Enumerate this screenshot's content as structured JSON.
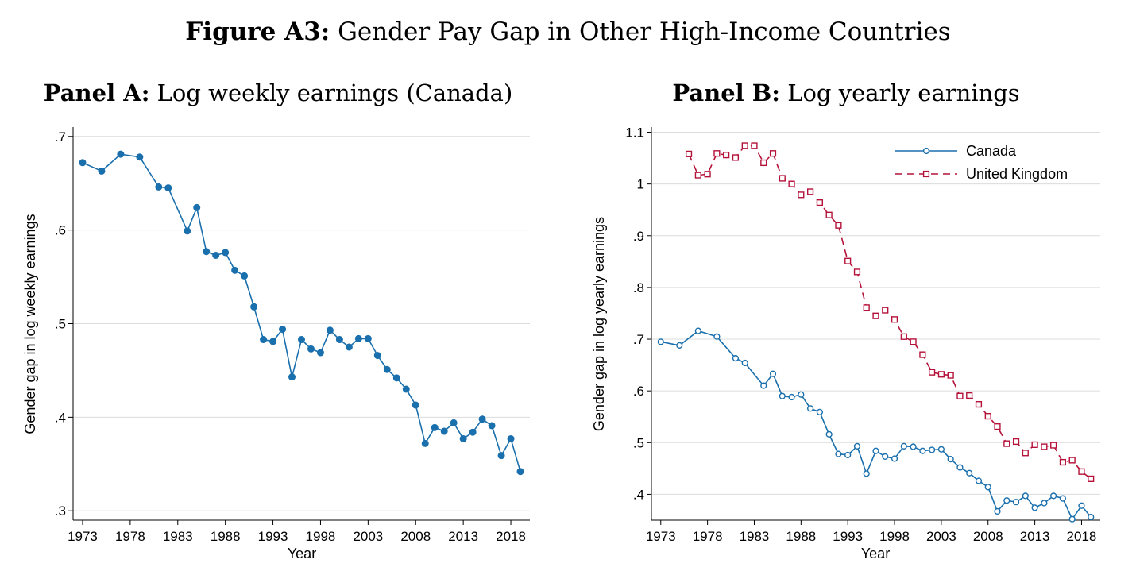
{
  "figure": {
    "label": "Figure A3:",
    "title": "Gender Pay Gap in Other High-Income Countries"
  },
  "panels": [
    {
      "label": "Panel A:",
      "title": "Log weekly earnings (Canada)"
    },
    {
      "label": "Panel B:",
      "title": "Log yearly earnings"
    }
  ],
  "colors": {
    "canada": "#1a6fad",
    "uk": "#b5123a",
    "grid": "#dcdcdc"
  },
  "chart_data": [
    {
      "type": "line",
      "title": "Panel A: Log weekly earnings (Canada)",
      "xlabel": "Year",
      "ylabel": "Gender gap in log weekly earnings",
      "xlim": [
        1972,
        2020
      ],
      "ylim": [
        0.29,
        0.71
      ],
      "xticks": [
        1973,
        1978,
        1983,
        1988,
        1993,
        1998,
        2003,
        2008,
        2013,
        2018
      ],
      "yticks": [
        0.3,
        0.4,
        0.5,
        0.6,
        0.7
      ],
      "ytick_labels": [
        ".3",
        ".4",
        ".5",
        ".6",
        ".7"
      ],
      "grid": true,
      "series": [
        {
          "marker": "filled-circle",
          "x": [
            1973,
            1975,
            1977,
            1979,
            1981,
            1982,
            1984,
            1985,
            1986,
            1987,
            1988,
            1989,
            1990,
            1991,
            1992,
            1993,
            1994,
            1995,
            1996,
            1997,
            1998,
            1999,
            2000,
            2001,
            2002,
            2003,
            2004,
            2005,
            2006,
            2007,
            2008,
            2009,
            2010,
            2011,
            2012,
            2013,
            2014,
            2015,
            2016,
            2017,
            2018,
            2019
          ],
          "y": [
            0.672,
            0.663,
            0.681,
            0.678,
            0.646,
            0.645,
            0.599,
            0.624,
            0.577,
            0.573,
            0.576,
            0.557,
            0.551,
            0.518,
            0.483,
            0.481,
            0.494,
            0.443,
            0.483,
            0.473,
            0.469,
            0.493,
            0.483,
            0.475,
            0.484,
            0.484,
            0.466,
            0.451,
            0.442,
            0.43,
            0.413,
            0.372,
            0.389,
            0.385,
            0.394,
            0.377,
            0.384,
            0.398,
            0.391,
            0.359,
            0.377,
            0.342
          ]
        }
      ]
    },
    {
      "type": "line",
      "title": "Panel B: Log yearly earnings",
      "xlabel": "Year",
      "ylabel": "Gender gap in log yearly earnings",
      "xlim": [
        1972,
        2020
      ],
      "ylim": [
        0.35,
        1.11
      ],
      "xticks": [
        1973,
        1978,
        1983,
        1988,
        1993,
        1998,
        2003,
        2008,
        2013,
        2018
      ],
      "yticks": [
        0.4,
        0.5,
        0.6,
        0.7,
        0.8,
        0.9,
        1.0,
        1.1
      ],
      "ytick_labels": [
        ".4",
        ".5",
        ".6",
        ".7",
        ".8",
        ".9",
        "1",
        "1.1"
      ],
      "grid": true,
      "legend_position": "top-right",
      "series": [
        {
          "name": "Canada",
          "marker": "hollow-circle",
          "line": "solid",
          "x": [
            1973,
            1975,
            1977,
            1979,
            1981,
            1982,
            1984,
            1985,
            1986,
            1987,
            1988,
            1989,
            1990,
            1991,
            1992,
            1993,
            1994,
            1995,
            1996,
            1997,
            1998,
            1999,
            2000,
            2001,
            2002,
            2003,
            2004,
            2005,
            2006,
            2007,
            2008,
            2009,
            2010,
            2011,
            2012,
            2013,
            2014,
            2015,
            2016,
            2017,
            2018,
            2019
          ],
          "y": [
            0.695,
            0.688,
            0.716,
            0.705,
            0.663,
            0.654,
            0.61,
            0.633,
            0.59,
            0.588,
            0.593,
            0.566,
            0.559,
            0.516,
            0.478,
            0.476,
            0.493,
            0.44,
            0.484,
            0.473,
            0.469,
            0.493,
            0.492,
            0.484,
            0.486,
            0.487,
            0.468,
            0.452,
            0.441,
            0.426,
            0.414,
            0.367,
            0.388,
            0.385,
            0.397,
            0.374,
            0.383,
            0.397,
            0.392,
            0.352,
            0.378,
            0.356
          ]
        },
        {
          "name": "United Kingdom",
          "marker": "hollow-square",
          "line": "dashed",
          "x": [
            1976,
            1977,
            1978,
            1979,
            1980,
            1981,
            1982,
            1983,
            1984,
            1985,
            1986,
            1987,
            1988,
            1989,
            1990,
            1991,
            1992,
            1993,
            1994,
            1995,
            1996,
            1997,
            1998,
            1999,
            2000,
            2001,
            2002,
            2003,
            2004,
            2005,
            2006,
            2007,
            2008,
            2009,
            2010,
            2011,
            2012,
            2013,
            2014,
            2015,
            2016,
            2017,
            2018,
            2019
          ],
          "y": [
            1.058,
            1.017,
            1.019,
            1.059,
            1.056,
            1.051,
            1.074,
            1.074,
            1.041,
            1.059,
            1.011,
            1.0,
            0.979,
            0.985,
            0.964,
            0.94,
            0.92,
            0.851,
            0.83,
            0.761,
            0.745,
            0.756,
            0.738,
            0.705,
            0.695,
            0.67,
            0.636,
            0.632,
            0.63,
            0.59,
            0.591,
            0.574,
            0.551,
            0.531,
            0.498,
            0.502,
            0.48,
            0.496,
            0.492,
            0.495,
            0.462,
            0.466,
            0.444,
            0.43
          ]
        }
      ]
    }
  ]
}
